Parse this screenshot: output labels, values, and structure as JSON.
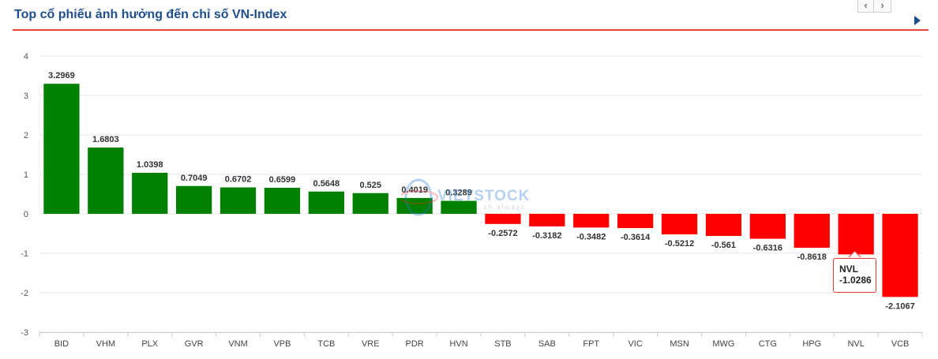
{
  "header": {
    "title": "Top cổ phiếu ảnh hưởng đến chỉ số VN-Index",
    "prev_label": "‹",
    "next_label": "›"
  },
  "watermark": {
    "text": "VIETSTOCK",
    "tagline": "..sh always"
  },
  "tooltip": {
    "name": "NVL",
    "value": "-1.0286"
  },
  "colors": {
    "positive": "#008000",
    "negative": "#ff0000",
    "title": "#1e4e8c",
    "rule": "#e8433a"
  },
  "icons": {
    "prev": "chevron-left-icon",
    "next": "chevron-right-icon",
    "more": "triangle-right-icon"
  },
  "chart_data": {
    "type": "bar",
    "title": "Top cổ phiếu ảnh hưởng đến chỉ số VN-Index",
    "xlabel": "",
    "ylabel": "",
    "ylim": [
      -3,
      4
    ],
    "yticks": [
      4,
      3,
      2,
      1,
      0,
      -1,
      -2,
      -3
    ],
    "grid": true,
    "legend": "none",
    "categories": [
      "BID",
      "VHM",
      "PLX",
      "GVR",
      "VNM",
      "VPB",
      "TCB",
      "VRE",
      "PDR",
      "HVN",
      "STB",
      "SAB",
      "FPT",
      "VIC",
      "MSN",
      "MWG",
      "CTG",
      "HPG",
      "NVL",
      "VCB"
    ],
    "values": [
      3.2969,
      1.6803,
      1.0398,
      0.7049,
      0.6702,
      0.6599,
      0.5648,
      0.525,
      0.4019,
      0.3289,
      -0.2572,
      -0.3182,
      -0.3482,
      -0.3614,
      -0.5212,
      -0.561,
      -0.6316,
      -0.8618,
      -1.0286,
      -2.1067
    ],
    "labels": [
      "3.2969",
      "1.6803",
      "1.0398",
      "0.7049",
      "0.6702",
      "0.6599",
      "0.5648",
      "0.525",
      "0.4019",
      "0.3289",
      "-0.2572",
      "-0.3182",
      "-0.3482",
      "-0.3614",
      "-0.5212",
      "-0.561",
      "-0.6316",
      "-0.8618",
      "-1.0286",
      "-2.1067"
    ]
  }
}
